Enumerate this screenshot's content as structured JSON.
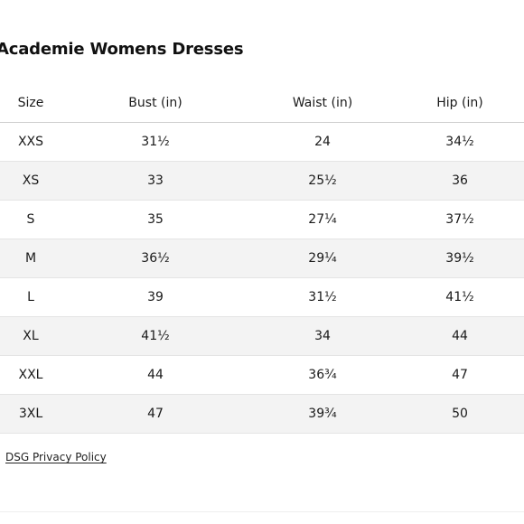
{
  "title": "Academie Womens Dresses",
  "table": {
    "headers": [
      "Size",
      "Bust (in)",
      "Waist (in)",
      "Hip (in)"
    ],
    "rows": [
      [
        "XXS",
        "31½",
        "24",
        "34½"
      ],
      [
        "XS",
        "33",
        "25½",
        "36"
      ],
      [
        "S",
        "35",
        "27¼",
        "37½"
      ],
      [
        "M",
        "36½",
        "29¼",
        "39½"
      ],
      [
        "L",
        "39",
        "31½",
        "41½"
      ],
      [
        "XL",
        "41½",
        "34",
        "44"
      ],
      [
        "XXL",
        "44",
        "36¾",
        "47"
      ],
      [
        "3XL",
        "47",
        "39¾",
        "50"
      ]
    ]
  },
  "footer": {
    "privacy_link": "DSG Privacy Policy"
  }
}
